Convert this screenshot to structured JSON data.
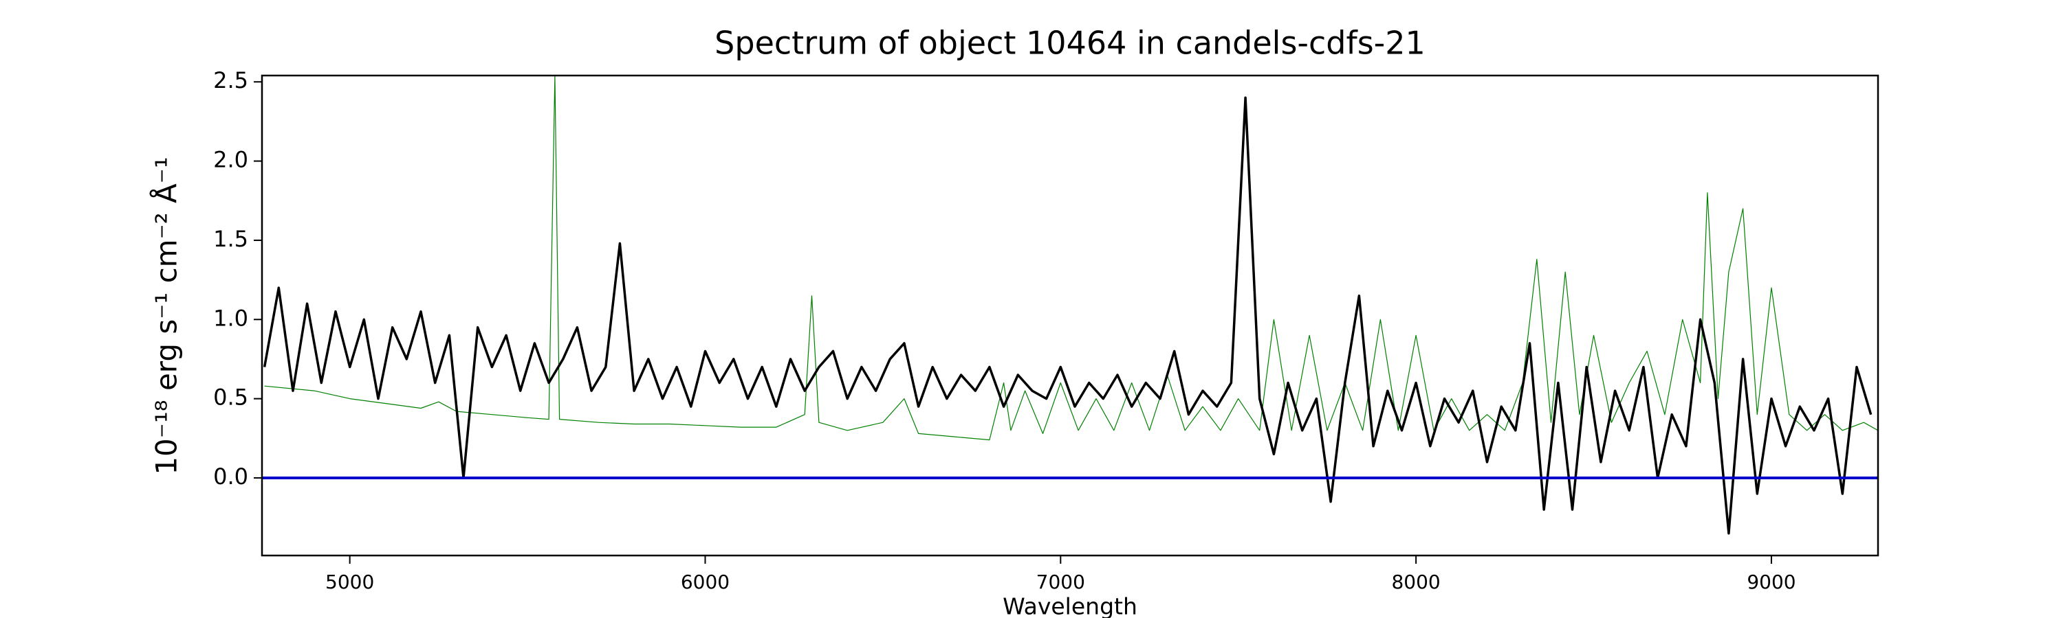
{
  "chart_data": {
    "type": "line",
    "title": "Spectrum of object 10464 in candels-cdfs-21",
    "xlabel": "Wavelength",
    "ylabel": "10⁻¹⁸ erg s⁻¹ cm⁻² Å⁻¹",
    "xlim": [
      4753,
      9300
    ],
    "ylim": [
      -0.49,
      2.54
    ],
    "xticks": [
      5000,
      6000,
      7000,
      8000,
      9000
    ],
    "yticks": [
      {
        "value": 0,
        "label": "0.0"
      },
      0.5,
      {
        "value": 1,
        "label": "1.0"
      },
      1.5,
      {
        "value": 2,
        "label": "2.0"
      },
      2.5
    ],
    "grid": false,
    "series": [
      {
        "color": "#008000",
        "width": 1.2,
        "x": [
          4760,
          4900,
          5000,
          5100,
          5200,
          5250,
          5300,
          5400,
          5500,
          5560,
          5577,
          5590,
          5700,
          5800,
          5900,
          6000,
          6100,
          6200,
          6280,
          6300,
          6320,
          6400,
          6500,
          6560,
          6600,
          6700,
          6800,
          6840,
          6860,
          6900,
          6950,
          7000,
          7050,
          7100,
          7150,
          7200,
          7250,
          7300,
          7350,
          7400,
          7450,
          7500,
          7560,
          7600,
          7650,
          7700,
          7750,
          7800,
          7850,
          7900,
          7950,
          8000,
          8050,
          8100,
          8150,
          8200,
          8250,
          8300,
          8340,
          8380,
          8420,
          8460,
          8500,
          8550,
          8600,
          8650,
          8700,
          8750,
          8800,
          8820,
          8850,
          8880,
          8920,
          8960,
          9000,
          9050,
          9100,
          9150,
          9200,
          9260,
          9300
        ],
        "values": [
          0.58,
          0.55,
          0.5,
          0.47,
          0.44,
          0.48,
          0.42,
          0.4,
          0.38,
          0.37,
          2.54,
          0.37,
          0.35,
          0.34,
          0.34,
          0.33,
          0.32,
          0.32,
          0.4,
          1.15,
          0.35,
          0.3,
          0.35,
          0.5,
          0.28,
          0.26,
          0.24,
          0.6,
          0.3,
          0.55,
          0.28,
          0.6,
          0.3,
          0.5,
          0.3,
          0.6,
          0.3,
          0.65,
          0.3,
          0.45,
          0.3,
          0.5,
          0.3,
          1.0,
          0.3,
          0.9,
          0.3,
          0.6,
          0.3,
          1.0,
          0.3,
          0.9,
          0.3,
          0.5,
          0.3,
          0.4,
          0.3,
          0.6,
          1.38,
          0.35,
          1.3,
          0.4,
          0.9,
          0.35,
          0.6,
          0.8,
          0.4,
          1.0,
          0.6,
          1.8,
          0.5,
          1.3,
          1.7,
          0.4,
          1.2,
          0.4,
          0.3,
          0.4,
          0.3,
          0.35,
          0.3
        ]
      },
      {
        "color": "#000000",
        "width": 3.5,
        "x": [
          4760,
          4800,
          4840,
          4880,
          4920,
          4960,
          5000,
          5040,
          5080,
          5120,
          5160,
          5200,
          5240,
          5280,
          5320,
          5360,
          5400,
          5440,
          5480,
          5520,
          5560,
          5600,
          5640,
          5680,
          5720,
          5760,
          5800,
          5840,
          5880,
          5920,
          5960,
          6000,
          6040,
          6080,
          6120,
          6160,
          6200,
          6240,
          6280,
          6320,
          6360,
          6400,
          6440,
          6480,
          6520,
          6560,
          6600,
          6640,
          6680,
          6720,
          6760,
          6800,
          6840,
          6880,
          6920,
          6960,
          7000,
          7040,
          7080,
          7120,
          7160,
          7200,
          7240,
          7280,
          7320,
          7360,
          7400,
          7440,
          7480,
          7520,
          7560,
          7600,
          7640,
          7680,
          7720,
          7760,
          7800,
          7840,
          7880,
          7920,
          7960,
          8000,
          8040,
          8080,
          8120,
          8160,
          8200,
          8240,
          8280,
          8320,
          8360,
          8400,
          8440,
          8480,
          8520,
          8560,
          8600,
          8640,
          8680,
          8720,
          8760,
          8800,
          8840,
          8880,
          8920,
          8960,
          9000,
          9040,
          9080,
          9120,
          9160,
          9200,
          9240,
          9280
        ],
        "values": [
          0.7,
          1.2,
          0.55,
          1.1,
          0.6,
          1.05,
          0.7,
          1.0,
          0.5,
          0.95,
          0.75,
          1.05,
          0.6,
          0.9,
          0.0,
          0.95,
          0.7,
          0.9,
          0.55,
          0.85,
          0.6,
          0.75,
          0.95,
          0.55,
          0.7,
          1.48,
          0.55,
          0.75,
          0.5,
          0.7,
          0.45,
          0.8,
          0.6,
          0.75,
          0.5,
          0.7,
          0.45,
          0.75,
          0.55,
          0.7,
          0.8,
          0.5,
          0.7,
          0.55,
          0.75,
          0.85,
          0.45,
          0.7,
          0.5,
          0.65,
          0.55,
          0.7,
          0.45,
          0.65,
          0.55,
          0.5,
          0.7,
          0.45,
          0.6,
          0.5,
          0.65,
          0.45,
          0.6,
          0.5,
          0.8,
          0.4,
          0.55,
          0.45,
          0.6,
          2.4,
          0.5,
          0.15,
          0.6,
          0.3,
          0.5,
          -0.15,
          0.6,
          1.15,
          0.2,
          0.55,
          0.3,
          0.6,
          0.2,
          0.5,
          0.35,
          0.55,
          0.1,
          0.45,
          0.3,
          0.85,
          -0.2,
          0.6,
          -0.2,
          0.7,
          0.1,
          0.55,
          0.3,
          0.7,
          0.0,
          0.4,
          0.2,
          1.0,
          0.6,
          -0.35,
          0.75,
          -0.1,
          0.5,
          0.2,
          0.45,
          0.3,
          0.5,
          -0.1,
          0.7,
          0.4
        ]
      },
      {
        "color": "#0000cc",
        "width": 4,
        "x": [
          4753,
          9300
        ],
        "values": [
          0,
          0
        ]
      }
    ]
  }
}
